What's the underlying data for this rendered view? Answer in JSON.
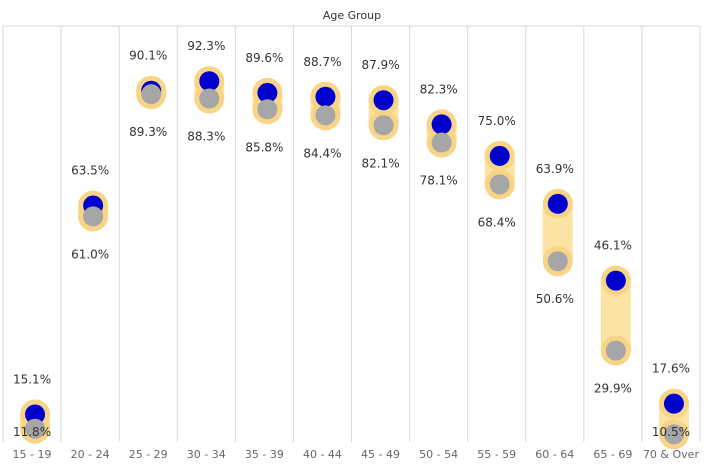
{
  "chart_data": {
    "type": "dumbbell",
    "title": "Age Group",
    "categories": [
      "15 - 19",
      "20 - 24",
      "25 - 29",
      "30 - 34",
      "35 - 39",
      "40 - 44",
      "45 - 49",
      "50 - 54",
      "55 - 59",
      "60 - 64",
      "65 - 69",
      "70 & Over"
    ],
    "series": [
      {
        "values": [
          15.1,
          63.5,
          90.1,
          92.3,
          89.6,
          88.7,
          87.9,
          82.3,
          75.0,
          63.9,
          46.1,
          17.6
        ]
      },
      {
        "values": [
          11.8,
          61.0,
          89.3,
          88.3,
          85.8,
          84.4,
          82.1,
          78.1,
          68.4,
          50.6,
          29.9,
          10.5
        ]
      }
    ],
    "upper_labels": [
      "15.1%",
      "63.5%",
      "90.1%",
      "92.3%",
      "89.6%",
      "88.7%",
      "87.9%",
      "82.3%",
      "75.0%",
      "63.9%",
      "46.1%",
      "17.6%"
    ],
    "lower_labels": [
      "11.8%",
      "61.0%",
      "89.3%",
      "88.3%",
      "85.8%",
      "84.4%",
      "82.1%",
      "78.1%",
      "68.4%",
      "50.6%",
      "29.9%",
      "10.5%"
    ],
    "ylim": [
      2,
      100
    ],
    "grid": false,
    "colors": {
      "series_a": "#0000cc",
      "series_b": "#a6a6a6",
      "band": "#fbe3a4",
      "halo": "#f7d486",
      "divider": "#d9d9d9"
    }
  }
}
